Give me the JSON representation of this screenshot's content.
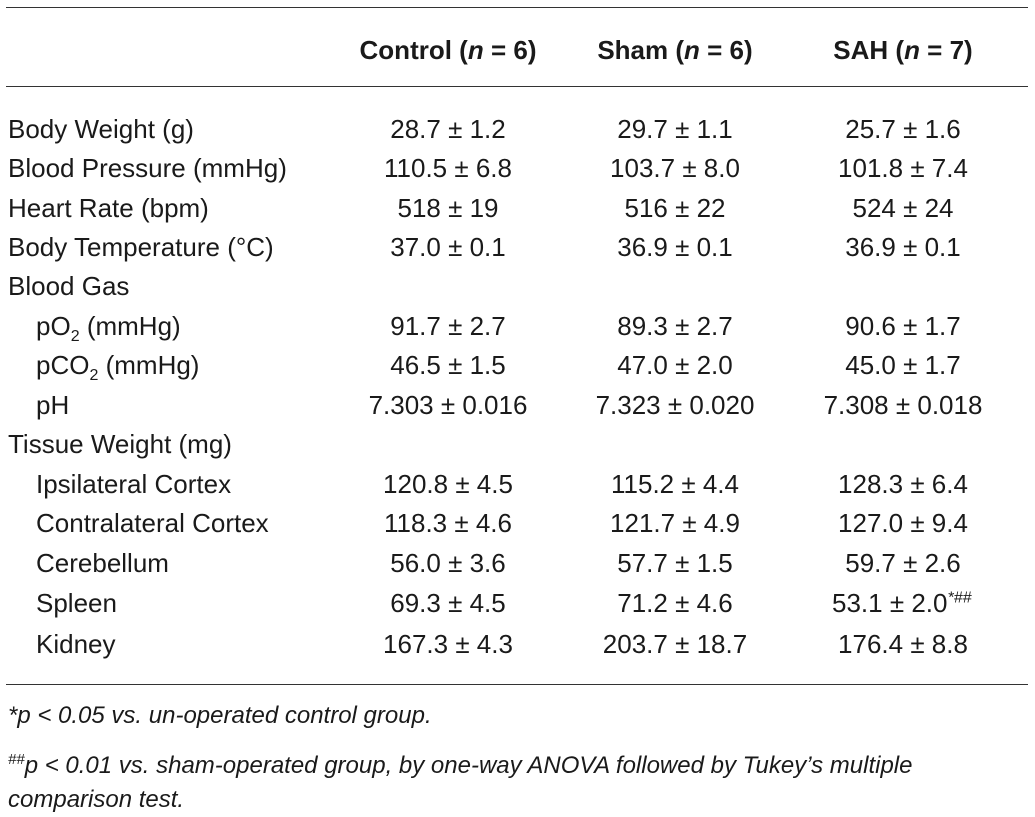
{
  "header": {
    "control": {
      "name": "Control (",
      "n_label": "n",
      "count": " = 6)"
    },
    "sham": {
      "name": "Sham (",
      "n_label": "n",
      "count": " = 6)"
    },
    "sah": {
      "name": "SAH (",
      "n_label": "n",
      "count": " = 7)"
    }
  },
  "rows": {
    "body_weight": {
      "label": "Body Weight (g)",
      "control": "28.7 ± 1.2",
      "sham": "29.7 ± 1.1",
      "sah": "25.7 ± 1.6"
    },
    "blood_pressure": {
      "label": "Blood Pressure (mmHg)",
      "control": "110.5 ± 6.8",
      "sham": "103.7 ± 8.0",
      "sah": "101.8 ± 7.4"
    },
    "heart_rate": {
      "label": "Heart Rate (bpm)",
      "control": "518 ± 19",
      "sham": "516 ± 22",
      "sah": "524 ± 24"
    },
    "body_temp": {
      "label": "Body Temperature (°C)",
      "control": "37.0 ± 0.1",
      "sham": "36.9 ± 0.1",
      "sah": "36.9 ± 0.1"
    },
    "blood_gas": {
      "label": "Blood Gas"
    },
    "po2": {
      "label_pre": "pO",
      "label_sub": "2",
      "label_post": " (mmHg)",
      "control": "91.7 ± 2.7",
      "sham": "89.3 ± 2.7",
      "sah": "90.6 ± 1.7"
    },
    "pco2": {
      "label_pre": "pCO",
      "label_sub": "2",
      "label_post": " (mmHg)",
      "control": "46.5 ± 1.5",
      "sham": "47.0 ± 2.0",
      "sah": "45.0 ± 1.7"
    },
    "ph": {
      "label": "pH",
      "control": "7.303 ± 0.016",
      "sham": "7.323 ± 0.020",
      "sah": "7.308 ± 0.018"
    },
    "tissue_weight": {
      "label": "Tissue Weight (mg)"
    },
    "ipsilateral": {
      "label": "Ipsilateral Cortex",
      "control": "120.8 ± 4.5",
      "sham": "115.2 ± 4.4",
      "sah": "128.3 ± 6.4"
    },
    "contralateral": {
      "label": "Contralateral Cortex",
      "control": "118.3 ± 4.6",
      "sham": "121.7 ± 4.9",
      "sah": "127.0 ± 9.4"
    },
    "cerebellum": {
      "label": "Cerebellum",
      "control": "56.0 ± 3.6",
      "sham": "57.7 ± 1.5",
      "sah": "59.7 ± 2.6"
    },
    "spleen": {
      "label": "Spleen",
      "control": "69.3 ± 4.5",
      "sham": "71.2 ± 4.6",
      "sah": "53.1 ± 2.0",
      "sah_mark": "*##"
    },
    "kidney": {
      "label": "Kidney",
      "control": "167.3 ± 4.3",
      "sham": "203.7 ± 18.7",
      "sah": "176.4 ± 8.8"
    }
  },
  "footnotes": {
    "note1": "*p < 0.05 vs. un-operated control group.",
    "note2_mark": "##",
    "note2_line1": "p < 0.01 vs. sham-operated group, by one-way ANOVA followed by Tukey’s multiple",
    "note2_line2": "comparison test."
  }
}
